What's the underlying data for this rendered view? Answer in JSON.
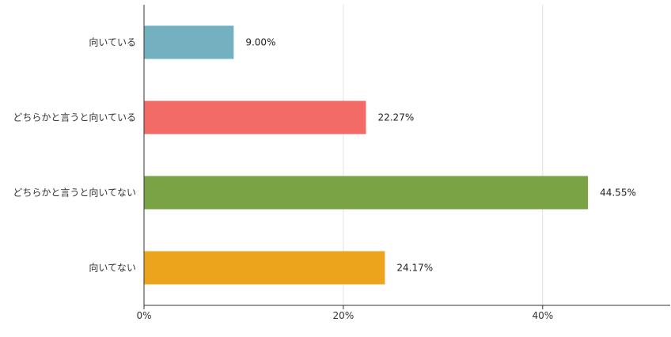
{
  "chart_data": {
    "type": "bar",
    "orientation": "horizontal",
    "categories": [
      "向いている",
      "どちらかと言うと向いている",
      "どちらかと言うと向いてない",
      "向いてない"
    ],
    "values": [
      9.0,
      22.27,
      44.55,
      24.17
    ],
    "value_labels": [
      "9.00%",
      "22.27%",
      "44.55%",
      "24.17%"
    ],
    "colors": [
      "#73b1c1",
      "#f26b67",
      "#7aa346",
      "#eba41c"
    ],
    "x_ticks": [
      {
        "value": 0,
        "label": "0%"
      },
      {
        "value": 20,
        "label": "20%"
      },
      {
        "value": 40,
        "label": "40%"
      }
    ],
    "xlim": [
      0,
      52.8
    ],
    "grid": true,
    "legend": "none"
  }
}
